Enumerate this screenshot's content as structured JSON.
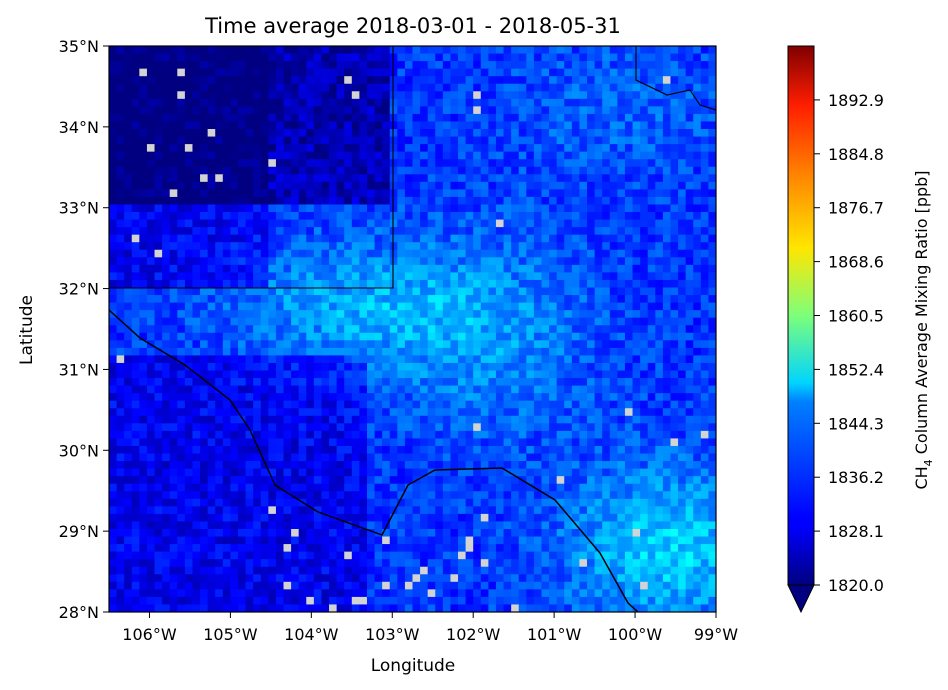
{
  "title": "Time average 2018-03-01 - 2018-05-31",
  "xlabel": "Longitude",
  "ylabel": "Latitude",
  "colorbar": {
    "label_prefix": "CH",
    "label_sub": "4",
    "label_suffix": " Column Average Mixing Ratio [ppb]",
    "min": 1820.0,
    "max": 1901.0,
    "ticks": [
      "1820.0",
      "1828.1",
      "1836.2",
      "1844.3",
      "1852.4",
      "1860.5",
      "1868.6",
      "1876.7",
      "1884.8",
      "1892.9"
    ],
    "colormap": "jet",
    "extend": "min"
  },
  "map": {
    "lon_range": [
      -106.5,
      -99.0
    ],
    "lat_range": [
      28.0,
      35.0
    ],
    "x_ticks": [
      "106°W",
      "105°W",
      "104°W",
      "103°W",
      "102°W",
      "101°W",
      "100°W",
      "99°W"
    ],
    "y_ticks": [
      "28°N",
      "29°N",
      "30°N",
      "31°N",
      "32°N",
      "33°N",
      "34°N",
      "35°N"
    ],
    "missing_color": "#d3d3d3",
    "boundary_color": "#000000"
  },
  "chart_data": {
    "type": "heatmap",
    "title": "Time average 2018-03-01 - 2018-05-31",
    "xlabel": "Longitude",
    "ylabel": "Latitude",
    "units": "ppb",
    "xlim": [
      -106.5,
      -99.0
    ],
    "ylim": [
      28.0,
      35.0
    ],
    "vmin": 1820.0,
    "vmax": 1901.0,
    "approx_region_means": [
      {
        "region": "northwest (NM)",
        "value": 1822
      },
      {
        "region": "central Texas/NM",
        "value": 1838
      },
      {
        "region": "south-east corner",
        "value": 1848
      }
    ]
  }
}
